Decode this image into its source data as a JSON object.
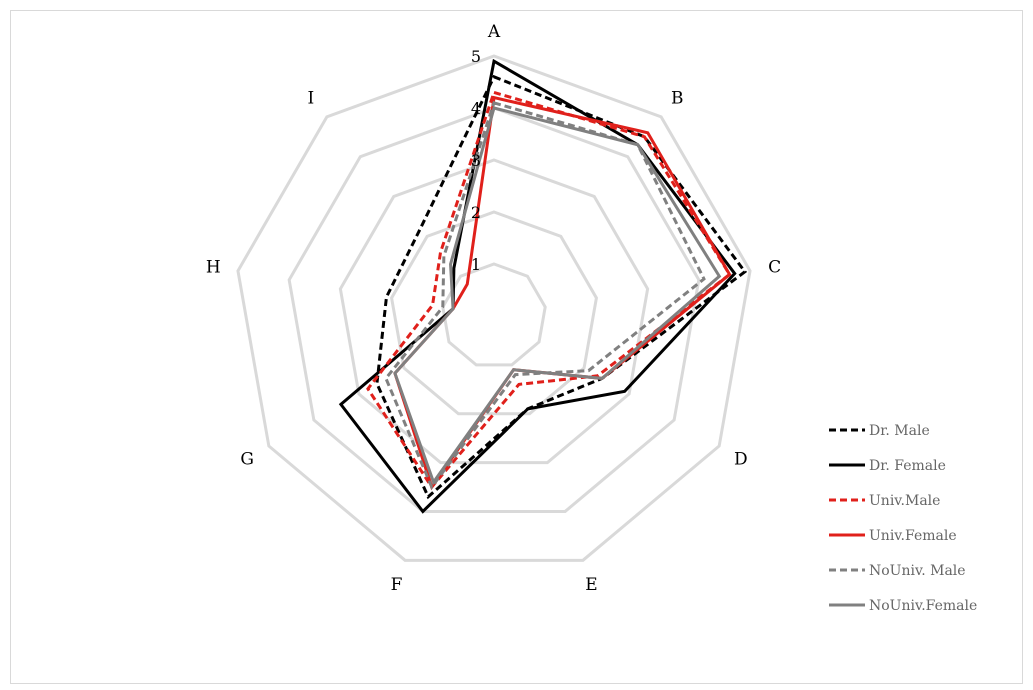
{
  "chart_data": {
    "type": "radar",
    "title": "",
    "axes": [
      "A",
      "B",
      "C",
      "D",
      "E",
      "F",
      "G",
      "H",
      "I"
    ],
    "range": [
      0,
      5
    ],
    "ticks": [
      1,
      2,
      3,
      4,
      5
    ],
    "tick_labels": [
      "1",
      "2",
      "3",
      "4",
      "5"
    ],
    "grid": true,
    "legend_position": "right",
    "series": [
      {
        "name": "Dr. Male",
        "color": "#000000",
        "dash": "dashed",
        "values": [
          4.6,
          4.5,
          4.9,
          2.4,
          1.9,
          3.7,
          2.6,
          2.1,
          2.2
        ]
      },
      {
        "name": "Dr. Female",
        "color": "#000000",
        "dash": "solid",
        "values": [
          4.9,
          4.3,
          4.7,
          2.9,
          1.9,
          4.0,
          3.4,
          0.8,
          1.2
        ]
      },
      {
        "name": "Univ.Male",
        "color": "#e0201b",
        "dash": "dashed",
        "values": [
          4.3,
          4.5,
          4.6,
          2.3,
          1.4,
          3.5,
          2.8,
          1.2,
          1.6
        ]
      },
      {
        "name": "Univ.Female",
        "color": "#e0201b",
        "dash": "solid",
        "values": [
          4.2,
          4.6,
          4.6,
          2.4,
          1.1,
          3.5,
          2.2,
          0.8,
          0.8
        ]
      },
      {
        "name": "NoUniv. Male",
        "color": "#808080",
        "dash": "dashed",
        "values": [
          4.1,
          4.3,
          4.1,
          2.1,
          1.2,
          3.5,
          2.4,
          1.0,
          1.5
        ]
      },
      {
        "name": "NoUniv.Female",
        "color": "#808080",
        "dash": "solid",
        "values": [
          4.0,
          4.3,
          4.4,
          2.4,
          1.1,
          3.4,
          2.2,
          0.8,
          1.3
        ]
      }
    ]
  }
}
